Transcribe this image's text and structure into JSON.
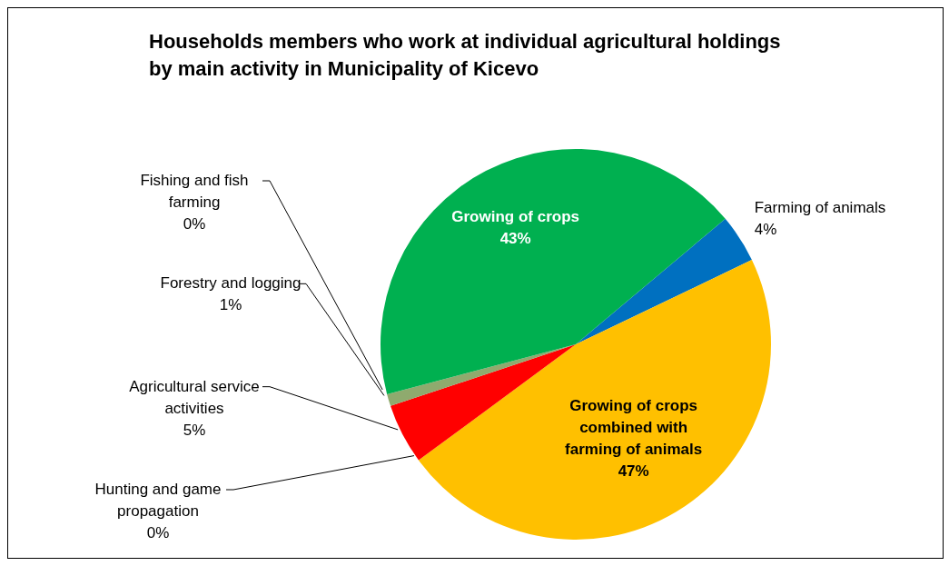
{
  "chart_data": {
    "type": "pie",
    "title": "Households members who work at individual agricultural holdings by main activity in Municipality of Kicevo",
    "categories": [
      "Farming of animals",
      "Growing of crops combined with farming of animals",
      "Hunting and game propagation",
      "Agricultural service activities",
      "Forestry and logging",
      "Fishing and fish farming",
      "Growing of crops"
    ],
    "values": [
      4,
      47,
      0,
      5,
      1,
      0,
      43
    ],
    "colors": [
      "#0070c0",
      "#ffc000",
      "#7030a0",
      "#ff0000",
      "#8faa6e",
      "#4bacc6",
      "#00b050"
    ],
    "value_labels": [
      "4%",
      "47%",
      "0%",
      "5%",
      "1%",
      "0%",
      "43%"
    ]
  }
}
